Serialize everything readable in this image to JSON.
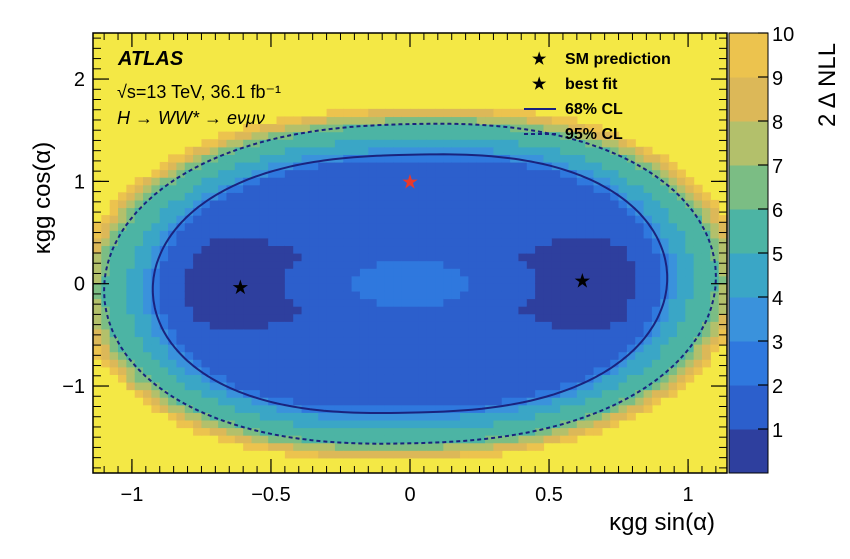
{
  "chart_data": {
    "type": "heatmap",
    "title": "",
    "experiment": "ATLAS",
    "energy_label": "√s=13 TeV, 36.1 fb⁻¹",
    "process_label": "H → WW* → eνμν",
    "xlabel": "κgg sin(α)",
    "ylabel": "κgg cos(α)",
    "zlabel": "2 Δ NLL",
    "xlim": [
      -1.14,
      1.14
    ],
    "ylim": [
      -1.85,
      2.45
    ],
    "zlim": [
      0,
      10
    ],
    "x_ticks": [
      -1,
      -0.5,
      0,
      0.5,
      1
    ],
    "x_tick_labels": [
      "−1",
      "−0.5",
      "0",
      "0.5",
      "1"
    ],
    "y_ticks": [
      -1,
      0,
      1,
      2
    ],
    "y_tick_labels": [
      "−1",
      "0",
      "1",
      "2"
    ],
    "z_ticks": [
      1,
      2,
      3,
      4,
      5,
      6,
      7,
      8,
      9,
      10
    ],
    "z_tick_labels": [
      "1",
      "2",
      "3",
      "4",
      "5",
      "6",
      "7",
      "8",
      "9",
      "10"
    ],
    "colors": [
      "#2e3f9e",
      "#2c5fcc",
      "#2f78de",
      "#3a92dc",
      "#3aa6c6",
      "#4cb4a4",
      "#7bbd84",
      "#b3c06b",
      "#dcb858",
      "#ecc34e",
      "#f4e845"
    ],
    "points": [
      {
        "name": "SM prediction",
        "x": 0.0,
        "y": 1.0,
        "marker": "star",
        "color": "#e8392b"
      },
      {
        "name": "best fit",
        "x": -0.61,
        "y": -0.03,
        "marker": "star",
        "color": "#000000"
      },
      {
        "name": "best fit",
        "x": 0.62,
        "y": 0.03,
        "marker": "star",
        "color": "#000000"
      }
    ],
    "contours": [
      {
        "name": "68% CL",
        "style": "solid",
        "level": 2.3,
        "a": 0.925,
        "b": 1.26,
        "p": 2.6,
        "shift": 0.06
      },
      {
        "name": "95% CL",
        "style": "dashed",
        "level": 5.99,
        "a": 1.1,
        "b": 1.56,
        "p": 2.4,
        "shift": 0.06
      }
    ],
    "legend": {
      "position": "top-right",
      "entries": [
        "SM prediction",
        "best fit",
        "68% CL",
        "95% CL"
      ]
    },
    "grid": false
  }
}
